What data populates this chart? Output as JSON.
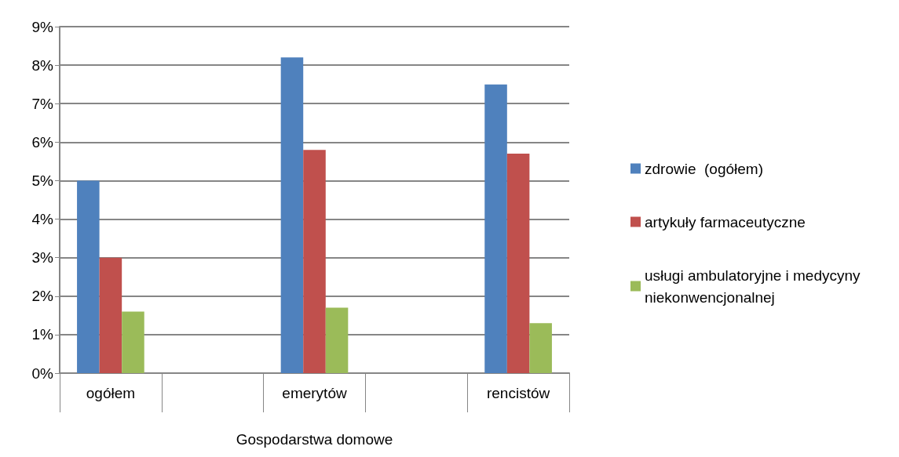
{
  "chart_data": {
    "type": "bar",
    "xlabel": "Gospodarstwa domowe",
    "categories": [
      "ogółem",
      null,
      "emerytów",
      null,
      "rencistów"
    ],
    "series": [
      {
        "name": "zdrowie  (ogółem)",
        "color": "#4f81bd",
        "values": [
          5.0,
          null,
          8.2,
          null,
          7.5
        ]
      },
      {
        "name": "artykuły farmaceutyczne",
        "color": "#c0504d",
        "values": [
          3.0,
          null,
          5.8,
          null,
          5.7
        ]
      },
      {
        "name": "usługi ambulatoryjne i medycyny niekonwencjonalnej",
        "color": "#9bbb59",
        "values": [
          1.6,
          null,
          1.7,
          null,
          1.3
        ]
      }
    ],
    "ylim": [
      0,
      9
    ],
    "yticks": [
      {
        "value": 0,
        "label": "0%"
      },
      {
        "value": 1,
        "label": "1%"
      },
      {
        "value": 2,
        "label": "2%"
      },
      {
        "value": 3,
        "label": "3%"
      },
      {
        "value": 4,
        "label": "4%"
      },
      {
        "value": 5,
        "label": "5%"
      },
      {
        "value": 6,
        "label": "6%"
      },
      {
        "value": 7,
        "label": "7%"
      },
      {
        "value": 8,
        "label": "8%"
      },
      {
        "value": 9,
        "label": "9%"
      }
    ],
    "grid": "y",
    "legend": "right"
  }
}
